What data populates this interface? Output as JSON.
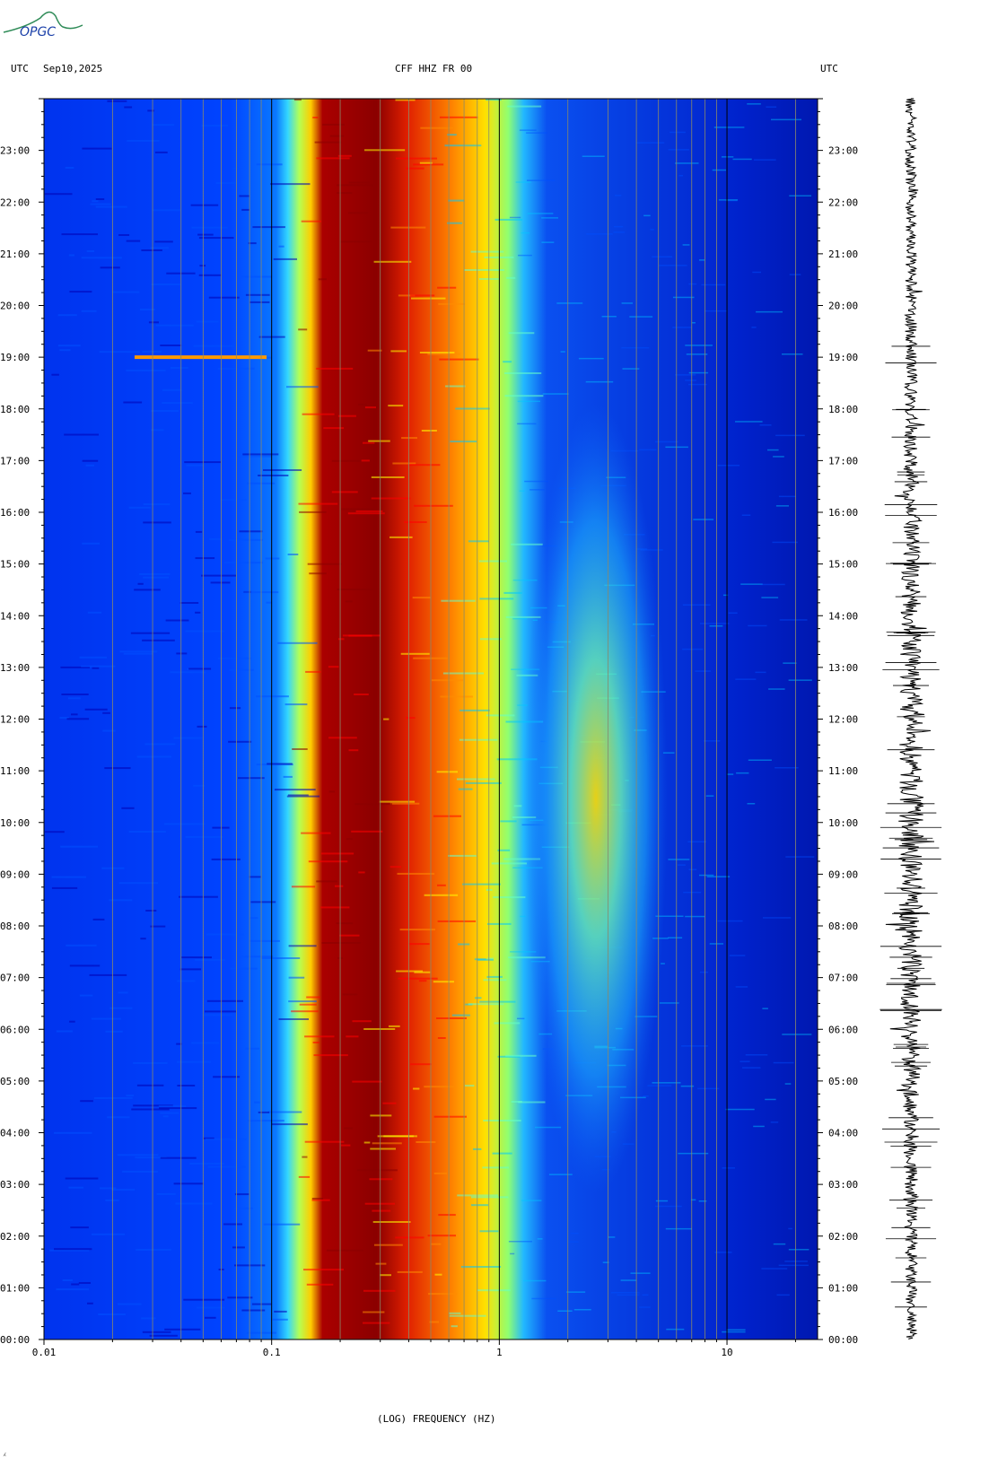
{
  "header": {
    "left_tz": "UTC",
    "date": "Sep10,2025",
    "station": "CFF HHZ FR 00",
    "right_tz": "UTC"
  },
  "logo": {
    "text": "OPGC",
    "color": "#2e8b57"
  },
  "footer_mark": "⁁",
  "chart_data": {
    "type": "heatmap",
    "subtype": "spectrogram",
    "xlabel": "(LOG) FREQUENCY (HZ)",
    "x_scale": "log",
    "xlim": [
      0.01,
      25
    ],
    "x_ticks": [
      {
        "value": 0.01,
        "label": "0.01"
      },
      {
        "value": 0.1,
        "label": "0.1"
      },
      {
        "value": 1,
        "label": "1"
      },
      {
        "value": 10,
        "label": "10"
      }
    ],
    "ylim_hours": [
      0,
      24
    ],
    "y_ticks": [
      "00:00",
      "01:00",
      "02:00",
      "03:00",
      "04:00",
      "05:00",
      "06:00",
      "07:00",
      "08:00",
      "09:00",
      "10:00",
      "11:00",
      "12:00",
      "13:00",
      "14:00",
      "15:00",
      "16:00",
      "17:00",
      "18:00",
      "19:00",
      "20:00",
      "21:00",
      "22:00",
      "23:00"
    ],
    "colormap": [
      "#0000b4",
      "#0050ff",
      "#00c8ff",
      "#64ffc8",
      "#ffff00",
      "#ff8c00",
      "#ff0000",
      "#8b0000"
    ],
    "bands": [
      {
        "f_min": 0.01,
        "f_max": 0.12,
        "level": "low (blue)"
      },
      {
        "f_min": 0.12,
        "f_max": 0.145,
        "level": "medium (cyan/yellow)"
      },
      {
        "f_min": 0.145,
        "f_max": 0.25,
        "level": "very high (dark red)"
      },
      {
        "f_min": 0.25,
        "f_max": 0.55,
        "level": "high (red/orange)"
      },
      {
        "f_min": 0.55,
        "f_max": 0.9,
        "level": "medium (yellow/cyan)"
      },
      {
        "f_min": 1.5,
        "f_max": 5,
        "level": "elevated (cyan/yellow) during 04:00-17:00"
      },
      {
        "f_min": 5,
        "f_max": 25,
        "level": "low (blue)"
      }
    ],
    "events": [
      {
        "time": "19:00",
        "f_min": 0.025,
        "f_max": 0.095,
        "note": "narrow band line"
      }
    ],
    "trace": "seismogram (vertical, 24 h)"
  }
}
